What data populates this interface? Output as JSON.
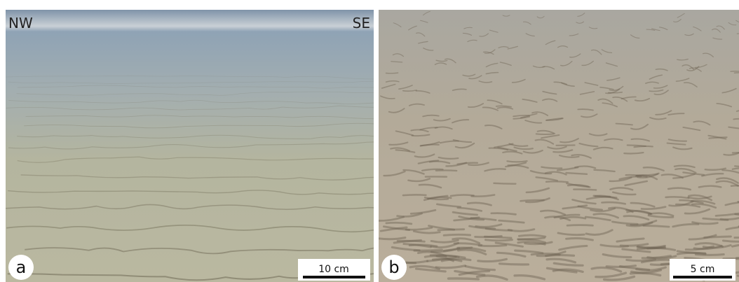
{
  "panels": [
    {
      "label": "a",
      "orientation": {
        "left": "NW",
        "right": "SE"
      },
      "scale_bar": "10 cm"
    },
    {
      "label": "b",
      "scale_bar": "5 cm"
    }
  ]
}
